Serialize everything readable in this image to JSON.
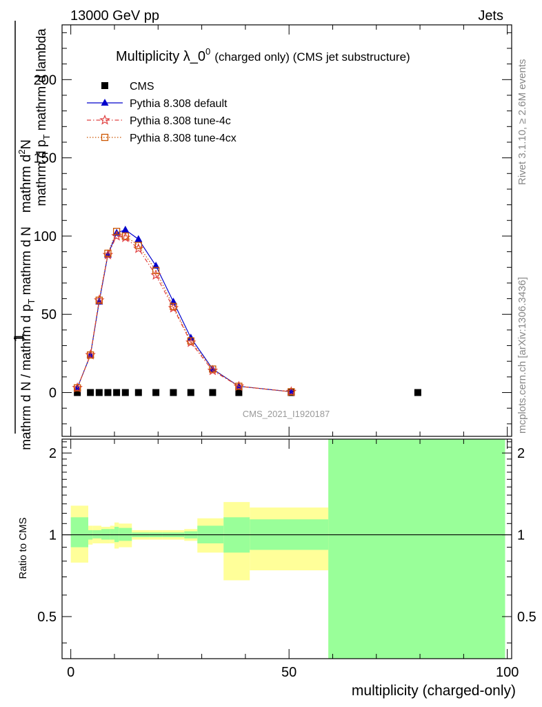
{
  "header": {
    "left": "13000 GeV pp",
    "right": "Jets"
  },
  "side_labels": {
    "rivet": "Rivet 3.1.10, ≥ 2.6M events",
    "mcplots": "mcplots.cern.ch [arXiv:1306.3436]"
  },
  "chart_data": {
    "type": "scatter",
    "title_main": "Multiplicity λ_0",
    "title_sup": "0",
    "title_suffix": "(charged only) (CMS jet substructure)",
    "ylabel_top": "1",
    "ylabel_frac_num": "mathrm d",
    "ylabel_frac_num_sup": "2",
    "ylabel_frac_num_tail": "N",
    "ylabel_frac_den": "mathrm d p",
    "ylabel_frac_den_sub": "T",
    "ylabel_frac_den_tail": "mathrm d lambda",
    "ylabel_bottom": "mathrm d N / mathrm d p",
    "ylabel_bottom_sub": "T",
    "ylabel_bottom_tail": "mathrm d N",
    "xlabel": "multiplicity (charged-only)",
    "ratio_ylabel": "Ratio to CMS",
    "watermark": "CMS_2021_I1920187",
    "xlim": [
      -2,
      101
    ],
    "ylim": [
      -28,
      235
    ],
    "ratio_ylim": [
      0.35,
      2.25
    ],
    "x_ticks": [
      "0",
      "50",
      "100"
    ],
    "y_ticks": [
      "0",
      "50",
      "100",
      "150",
      "200"
    ],
    "ratio_ticks": [
      "0.5",
      "1",
      "2"
    ],
    "legend": {
      "position": "top-left",
      "entries": [
        "CMS",
        "Pythia 8.308 default",
        "Pythia 8.308 tune-4c",
        "Pythia 8.308 tune-4cx"
      ]
    },
    "series": [
      {
        "name": "CMS",
        "color": "#000000",
        "marker": "square",
        "x": [
          1.5,
          4.5,
          6.5,
          8.5,
          10.5,
          12.5,
          15.5,
          19.5,
          23.5,
          27.5,
          32.5,
          38.5,
          50.5,
          79.5
        ],
        "y": [
          0,
          0,
          0,
          0,
          0,
          0,
          0,
          0,
          0,
          0,
          0,
          0,
          0,
          0
        ]
      },
      {
        "name": "Pythia 8.308 default",
        "color": "#0000cc",
        "marker": "triangle",
        "line": "solid",
        "x": [
          1.5,
          4.5,
          6.5,
          8.5,
          10.5,
          12.5,
          15.5,
          19.5,
          23.5,
          27.5,
          32.5,
          38.5,
          50.5
        ],
        "y": [
          3,
          24,
          58,
          88,
          102,
          104,
          98,
          81,
          58,
          35,
          15,
          4,
          0.5
        ]
      },
      {
        "name": "Pythia 8.308 tune-4c",
        "color": "#e04040",
        "marker": "star",
        "line": "dashdot",
        "x": [
          1.5,
          4.5,
          6.5,
          8.5,
          10.5,
          12.5,
          15.5,
          19.5,
          23.5,
          27.5,
          32.5,
          38.5,
          50.5
        ],
        "y": [
          3,
          24,
          59,
          88,
          100,
          99,
          92,
          75,
          54,
          32,
          14,
          4,
          0.5
        ]
      },
      {
        "name": "Pythia 8.308 tune-4cx",
        "color": "#cc5500",
        "marker": "open-square",
        "line": "dotted",
        "x": [
          1.5,
          4.5,
          6.5,
          8.5,
          10.5,
          12.5,
          15.5,
          19.5,
          23.5,
          27.5,
          32.5,
          38.5,
          50.5
        ],
        "y": [
          3,
          24,
          59,
          89,
          103,
          100,
          94,
          78,
          55,
          33,
          15,
          4,
          0.5
        ]
      }
    ],
    "ratio_bands": {
      "bins": [
        {
          "lo": 0,
          "hi": 4,
          "green": [
            0.9,
            1.16
          ],
          "yellow": [
            0.79,
            1.28
          ]
        },
        {
          "lo": 4,
          "hi": 5,
          "green": [
            0.96,
            1.04
          ],
          "yellow": [
            0.92,
            1.08
          ]
        },
        {
          "lo": 5,
          "hi": 7,
          "green": [
            0.97,
            1.04
          ],
          "yellow": [
            0.93,
            1.08
          ]
        },
        {
          "lo": 7,
          "hi": 9,
          "green": [
            0.96,
            1.05
          ],
          "yellow": [
            0.93,
            1.07
          ]
        },
        {
          "lo": 9,
          "hi": 10,
          "green": [
            0.96,
            1.05
          ],
          "yellow": [
            0.93,
            1.08
          ]
        },
        {
          "lo": 10,
          "hi": 11,
          "green": [
            0.94,
            1.07
          ],
          "yellow": [
            0.89,
            1.11
          ]
        },
        {
          "lo": 11,
          "hi": 14,
          "green": [
            0.95,
            1.06
          ],
          "yellow": [
            0.9,
            1.1
          ]
        },
        {
          "lo": 14,
          "hi": 18,
          "green": [
            0.98,
            1.02
          ],
          "yellow": [
            0.96,
            1.04
          ]
        },
        {
          "lo": 18,
          "hi": 21,
          "green": [
            0.98,
            1.02
          ],
          "yellow": [
            0.96,
            1.04
          ]
        },
        {
          "lo": 21,
          "hi": 26,
          "green": [
            0.98,
            1.02
          ],
          "yellow": [
            0.96,
            1.04
          ]
        },
        {
          "lo": 26,
          "hi": 29,
          "green": [
            0.97,
            1.03
          ],
          "yellow": [
            0.95,
            1.05
          ]
        },
        {
          "lo": 29,
          "hi": 35,
          "green": [
            0.93,
            1.08
          ],
          "yellow": [
            0.86,
            1.15
          ]
        },
        {
          "lo": 35,
          "hi": 41,
          "green": [
            0.86,
            1.16
          ],
          "yellow": [
            0.68,
            1.32
          ]
        },
        {
          "lo": 41,
          "hi": 59,
          "green": [
            0.88,
            1.14
          ],
          "yellow": [
            0.74,
            1.26
          ]
        },
        {
          "lo": 59,
          "hi": 99.5,
          "green": [
            0.35,
            2.25
          ],
          "yellow": [
            0.35,
            2.25
          ]
        }
      ],
      "reference": 1
    }
  }
}
